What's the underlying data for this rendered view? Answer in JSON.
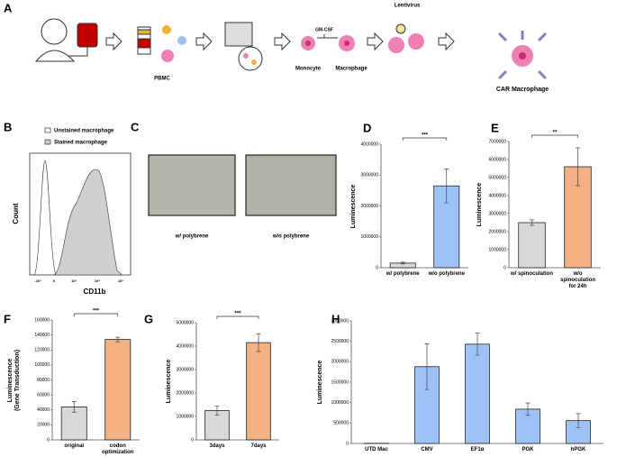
{
  "panel_labels": {
    "a": "A",
    "b": "B",
    "c": "C"
  },
  "schematic": {
    "pbmc": "PBMC",
    "gm_csf": "GM-CSF",
    "monocyte": "Monocyte",
    "macrophage": "Macrophage",
    "lentivirus": "Lentivirus",
    "car_macrophage": "CAR Macrophage"
  },
  "flow_cytometry": {
    "legend": [
      "Unstained macrophage",
      "Stained macrophage"
    ],
    "y_label": "Count",
    "x_label": "CD11b",
    "x_tick_labels": [
      "-10³",
      "0",
      "10³",
      "10⁴",
      "10⁵"
    ]
  },
  "microscopy": {
    "captions": [
      "w/ polybrene",
      "w/o polybrene"
    ]
  },
  "chart_data": [
    {
      "type": "bar",
      "panel": "D",
      "y_label": "Luminescence",
      "categories": [
        "w/ polybrene",
        "w/o polybrene"
      ],
      "values": [
        150000,
        2650000
      ],
      "errors": [
        30000,
        550000
      ],
      "colors": [
        "#d9d9d9",
        "#9dc3f6"
      ],
      "ylim": [
        0,
        4000000
      ],
      "yticks": [
        0,
        1000000,
        2000000,
        3000000,
        4000000
      ],
      "significance": "***"
    },
    {
      "type": "bar",
      "panel": "E",
      "y_label": "Luminescence",
      "categories": [
        "w/ spinoculation",
        "w/o spinoculation\nfor 24h"
      ],
      "values": [
        2500000,
        5600000
      ],
      "errors": [
        150000,
        1050000
      ],
      "colors": [
        "#d9d9d9",
        "#f4b183"
      ],
      "ylim": [
        0,
        7000000
      ],
      "yticks": [
        0,
        1000000,
        2000000,
        3000000,
        4000000,
        5000000,
        6000000,
        7000000
      ],
      "significance": "**"
    },
    {
      "type": "bar",
      "panel": "F",
      "y_label": "Luminescence\n(Gene Transduction)",
      "categories": [
        "original",
        "codon\noptimization"
      ],
      "values": [
        44000,
        134000
      ],
      "errors": [
        7000,
        3000
      ],
      "colors": [
        "#d9d9d9",
        "#f4b183"
      ],
      "ylim": [
        0,
        160000
      ],
      "yticks": [
        0,
        20000,
        40000,
        60000,
        80000,
        100000,
        120000,
        140000,
        160000
      ],
      "significance": "***"
    },
    {
      "type": "bar",
      "panel": "G",
      "y_label": "Luminescence",
      "categories": [
        "3days",
        "7days"
      ],
      "values": [
        1250000,
        4150000
      ],
      "errors": [
        200000,
        380000
      ],
      "colors": [
        "#d9d9d9",
        "#f4b183"
      ],
      "ylim": [
        0,
        5000000
      ],
      "yticks": [
        0,
        1000000,
        2000000,
        3000000,
        4000000,
        5000000
      ],
      "significance": "***"
    },
    {
      "type": "bar",
      "panel": "H",
      "y_label": "Luminescence",
      "categories": [
        "UTD Mac",
        "CMV",
        "EF1α",
        "PGK",
        "hPGK"
      ],
      "values": [
        5000,
        1880000,
        2430000,
        840000,
        560000
      ],
      "errors": [
        0,
        560000,
        270000,
        150000,
        170000
      ],
      "colors": [
        "#9dc3f6",
        "#9dc3f6",
        "#9dc3f6",
        "#9dc3f6",
        "#9dc3f6"
      ],
      "ylim": [
        0,
        3000000
      ],
      "yticks": [
        0,
        500000,
        1000000,
        1500000,
        2000000,
        2500000,
        3000000
      ]
    }
  ]
}
